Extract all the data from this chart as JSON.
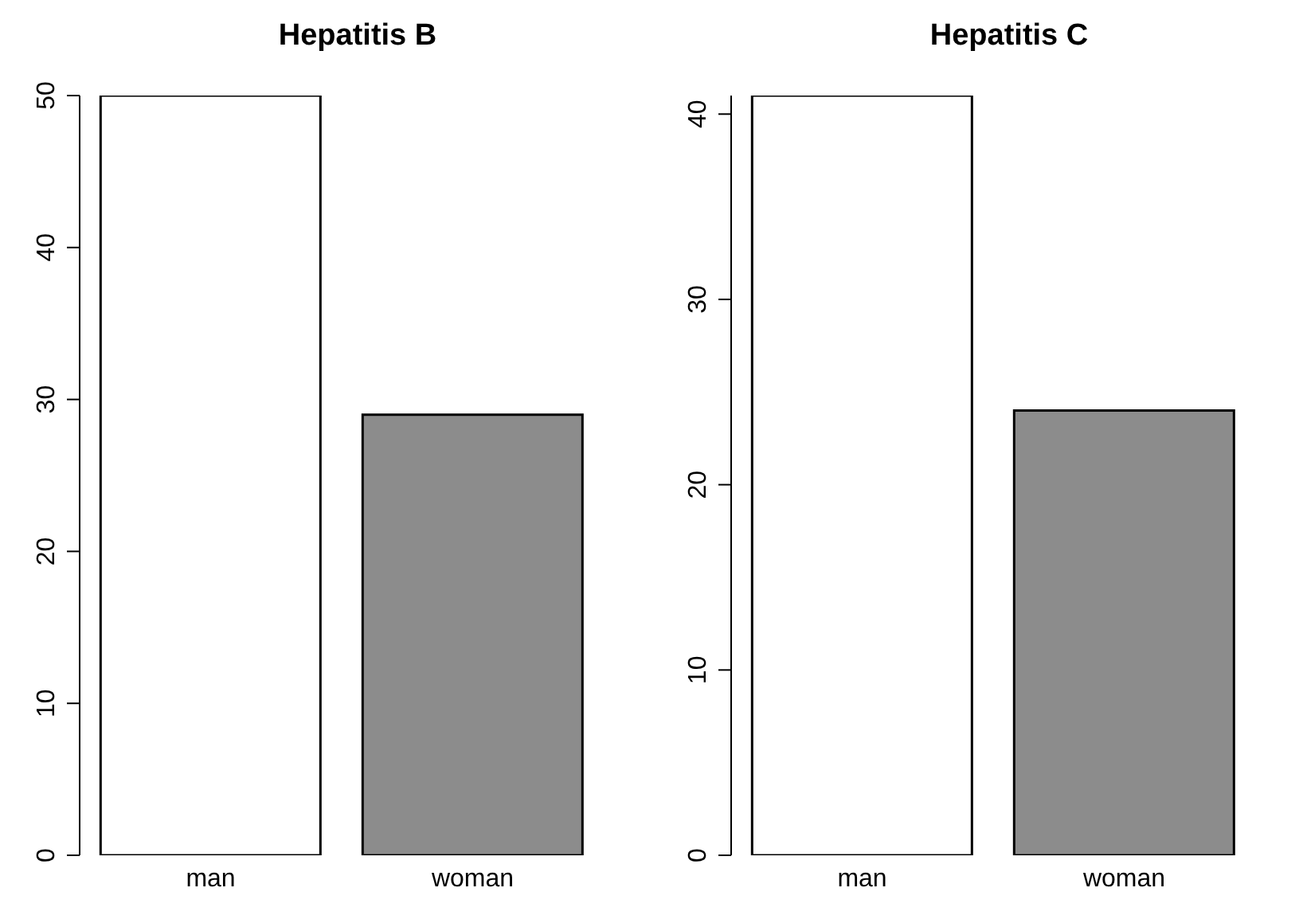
{
  "chart_data": [
    {
      "type": "bar",
      "title": "Hepatitis B",
      "categories": [
        "man",
        "woman"
      ],
      "values": [
        50,
        29
      ],
      "colors": [
        "#ffffff",
        "#8c8c8c"
      ],
      "ylim": [
        0,
        50
      ],
      "yticks": [
        0,
        10,
        20,
        30,
        40,
        50
      ],
      "grid": false,
      "legend": false
    },
    {
      "type": "bar",
      "title": "Hepatitis C",
      "categories": [
        "man",
        "woman"
      ],
      "values": [
        41,
        24
      ],
      "colors": [
        "#ffffff",
        "#8c8c8c"
      ],
      "ylim": [
        0,
        41
      ],
      "yticks": [
        0,
        10,
        20,
        30,
        40
      ],
      "grid": false,
      "legend": false
    }
  ]
}
